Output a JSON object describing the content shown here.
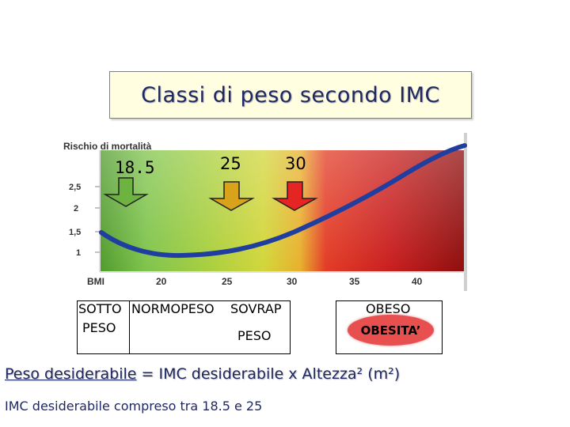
{
  "title": "Classi di peso secondo IMC",
  "chart": {
    "y_axis_title": "Rischio di mortalità",
    "y_ticks": [
      "2,5",
      "2",
      "1,5",
      "1"
    ],
    "x_axis_title": "BMI",
    "x_ticks": [
      "20",
      "25",
      "30",
      "35",
      "40"
    ],
    "thresholds": [
      {
        "label": "18.5",
        "color": "#6db33f"
      },
      {
        "label": "25",
        "color": "#d9a21b"
      },
      {
        "label": "30",
        "color": "#e52424"
      }
    ],
    "zone_colors": [
      "#6cb743",
      "#c6d63c",
      "#cd2424",
      "#9e1010"
    ],
    "curve_color": "#1f3ea0"
  },
  "categories": {
    "underweight_line1": "SOTTO",
    "underweight_line2": "PESO",
    "normal": "NORMOPESO",
    "overweight_line1": "SOVRAP",
    "overweight_line2": "PESO",
    "obese_overlap": "OBESO",
    "obesity": "OBESITA’"
  },
  "formula": {
    "lead": "Peso desiderabile",
    "rest": " = IMC desiderabile x Altezza² (m²)"
  },
  "note": "IMC desiderabile compreso tra 18.5 e 25"
}
